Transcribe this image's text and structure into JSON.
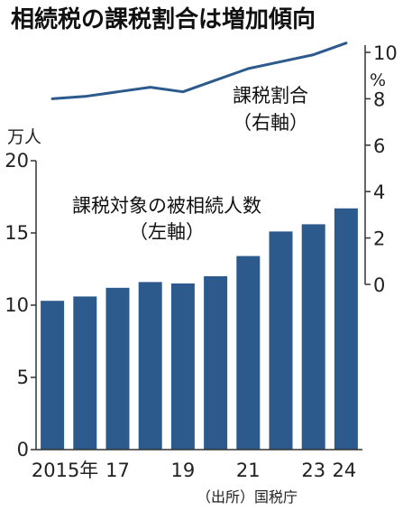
{
  "chart_data": {
    "title": "相続税の課税割合は増加傾向",
    "type": "bar+line",
    "x": [
      2015,
      2016,
      2017,
      2018,
      2019,
      2020,
      2021,
      2022,
      2023,
      2024
    ],
    "xtick_labels": [
      {
        "x": 2015,
        "label": "2015年"
      },
      {
        "x": 2017,
        "label": "17"
      },
      {
        "x": 2019,
        "label": "19"
      },
      {
        "x": 2021,
        "label": "21"
      },
      {
        "x": 2023,
        "label": "23"
      },
      {
        "x": 2024,
        "label": "24"
      }
    ],
    "left_axis": {
      "unit": "万人",
      "ylim": [
        0,
        20
      ],
      "ticks": [
        "0",
        "5",
        "10",
        "15",
        "20"
      ]
    },
    "right_axis": {
      "unit": "%",
      "ylim": [
        0,
        10
      ],
      "ticks": [
        "0",
        "2",
        "4",
        "6",
        "8",
        "10"
      ]
    },
    "series": [
      {
        "name": "課税対象の被相続人数",
        "axis_note": "（左軸）",
        "type": "bar",
        "values": [
          10.3,
          10.6,
          11.2,
          11.6,
          11.5,
          12.0,
          13.4,
          15.1,
          15.6,
          16.7
        ]
      },
      {
        "name": "課税割合",
        "axis_note": "（右軸）",
        "type": "line",
        "values": [
          8.0,
          8.1,
          8.3,
          8.5,
          8.3,
          8.8,
          9.3,
          9.6,
          9.9,
          10.4
        ]
      }
    ],
    "source": "（出所）国税庁",
    "colors": {
      "bar": "#2d5a8c",
      "line": "#2d5a8c",
      "axis": "#333333"
    }
  }
}
